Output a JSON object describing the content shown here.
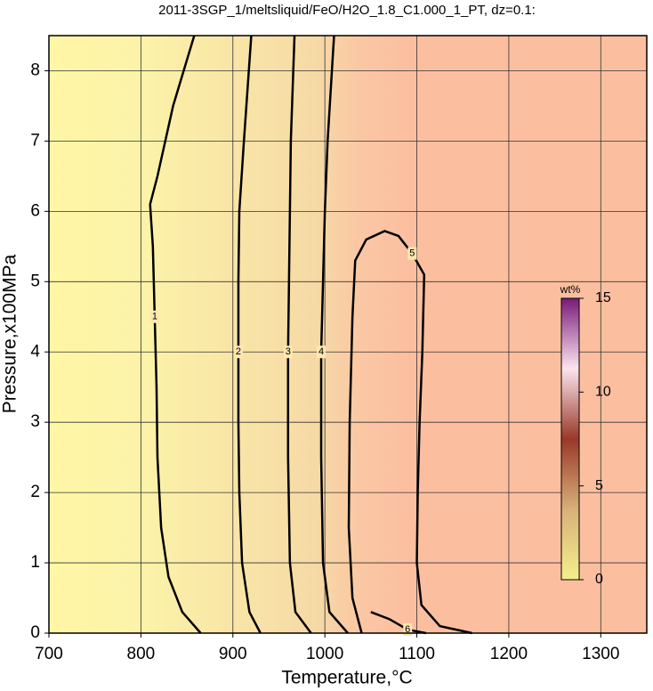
{
  "chart_data": {
    "type": "contour",
    "title": "2011-3SGP_1/meltsliquid/FeO/H2O_1.8_C1.000_1_PT, dz=0.1:",
    "xlabel": "Temperature,°C",
    "ylabel": "Pressure,x100MPa",
    "xlim": [
      700,
      1350
    ],
    "ylim": [
      0,
      8.5
    ],
    "xticks": [
      700,
      800,
      900,
      1000,
      1100,
      1200,
      1300
    ],
    "yticks": [
      0,
      1,
      2,
      3,
      4,
      5,
      6,
      7,
      8
    ],
    "grid": true,
    "color": "#000000",
    "contours": [
      {
        "level": 1,
        "x": [
          865,
          845,
          830,
          822,
          818,
          817,
          815,
          813,
          810,
          818,
          835,
          858
        ],
        "y": [
          0,
          0.3,
          0.8,
          1.5,
          2.5,
          3.5,
          4.5,
          5.5,
          6.1,
          6.5,
          7.5,
          8.5
        ]
      },
      {
        "level": 2,
        "x": [
          930,
          918,
          910,
          907,
          906,
          906,
          906,
          907,
          912,
          920
        ],
        "y": [
          0,
          0.3,
          1,
          2,
          3,
          4,
          5,
          6,
          7,
          8.5
        ]
      },
      {
        "level": 3,
        "x": [
          985,
          968,
          962,
          960,
          960,
          961,
          962,
          963,
          967
        ],
        "y": [
          0,
          0.3,
          1,
          2.5,
          4,
          5,
          6,
          7,
          8.5
        ]
      },
      {
        "level": 4,
        "x": [
          1025,
          1005,
          998,
          996,
          996,
          998,
          1000,
          1003,
          1010
        ],
        "y": [
          0,
          0.3,
          1,
          2.5,
          4,
          5,
          6,
          7,
          8.5
        ]
      },
      {
        "level": 5,
        "x": [
          1040,
          1030,
          1026,
          1027,
          1030,
          1033,
          1045,
          1065,
          1080,
          1095,
          1108,
          1106,
          1103,
          1101,
          1100,
          1105,
          1125,
          1160
        ],
        "y": [
          0,
          0.5,
          1.5,
          3,
          4.5,
          5.3,
          5.6,
          5.72,
          5.65,
          5.4,
          5.1,
          4,
          3,
          2,
          1,
          0.4,
          0.1,
          0
        ]
      },
      {
        "level": 6,
        "x": [
          1050,
          1070,
          1090,
          1110
        ],
        "y": [
          0.3,
          0.2,
          0.05,
          0
        ]
      }
    ],
    "colorbar": {
      "label": "wt%",
      "lim": [
        0,
        15
      ],
      "ticks": [
        0,
        5,
        10,
        15
      ]
    }
  }
}
